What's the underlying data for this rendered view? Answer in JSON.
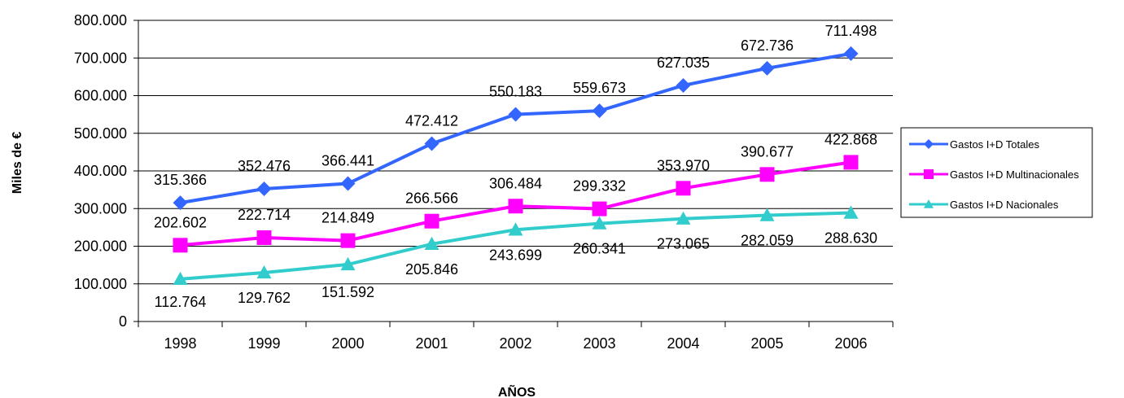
{
  "chart_data": {
    "type": "line",
    "categories": [
      "1998",
      "1999",
      "2000",
      "2001",
      "2002",
      "2003",
      "2004",
      "2005",
      "2006"
    ],
    "series": [
      {
        "name": "Gastos I+D Totales",
        "values": [
          315366,
          352476,
          366441,
          472412,
          550183,
          559673,
          627035,
          672736,
          711498
        ],
        "labels": [
          "315.366",
          "352.476",
          "366.441",
          "472.412",
          "550.183",
          "559.673",
          "627.035",
          "672.736",
          "711.498"
        ],
        "color": "#3366FF",
        "marker": "diamond"
      },
      {
        "name": "Gastos I+D Multinacionales",
        "values": [
          202602,
          222714,
          214849,
          266566,
          306484,
          299332,
          353970,
          390677,
          422868
        ],
        "labels": [
          "202.602",
          "222.714",
          "214.849",
          "266.566",
          "306.484",
          "299.332",
          "353.970",
          "390.677",
          "422.868"
        ],
        "color": "#FF00FF",
        "marker": "square"
      },
      {
        "name": "Gastos I+D Nacionales",
        "values": [
          112764,
          129762,
          151592,
          205846,
          243699,
          260341,
          273065,
          282059,
          288630
        ],
        "labels": [
          "112.764",
          "129.762",
          "151.592",
          "205.846",
          "243.699",
          "260.341",
          "273.065",
          "282.059",
          "288.630"
        ],
        "color": "#33CCCC",
        "marker": "triangle"
      }
    ],
    "xlabel": "AÑOS",
    "ylabel": "Miles de €",
    "ylim": [
      0,
      800000
    ],
    "yticks": [
      0,
      100000,
      200000,
      300000,
      400000,
      500000,
      600000,
      700000,
      800000
    ],
    "ytick_labels": [
      "0",
      "100.000",
      "200.000",
      "300.000",
      "400.000",
      "500.000",
      "600.000",
      "700.000",
      "800.000"
    ],
    "grid": true,
    "legend_position": "right"
  }
}
